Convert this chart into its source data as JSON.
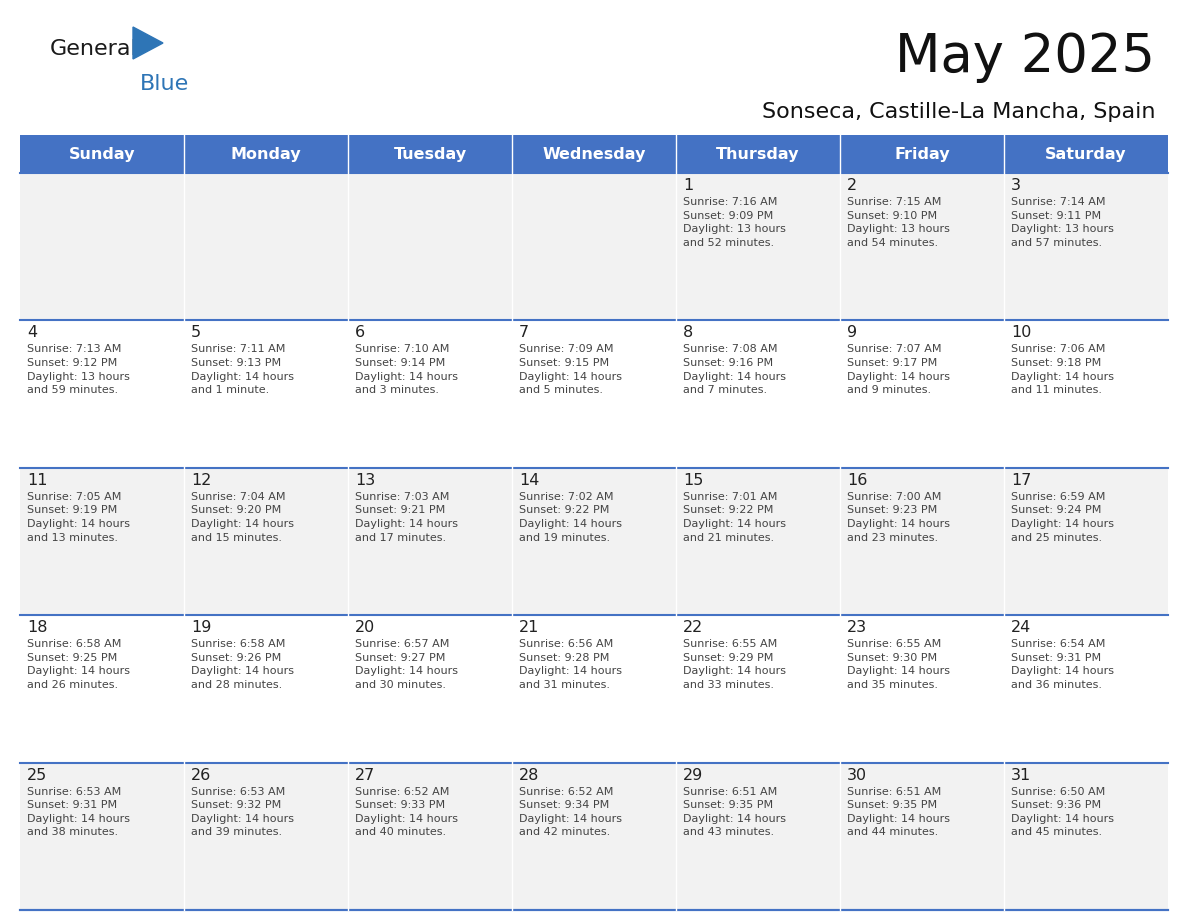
{
  "title": "May 2025",
  "subtitle": "Sonseca, Castille-La Mancha, Spain",
  "days_of_week": [
    "Sunday",
    "Monday",
    "Tuesday",
    "Wednesday",
    "Thursday",
    "Friday",
    "Saturday"
  ],
  "header_bg": "#4472C4",
  "header_text": "#FFFFFF",
  "cell_bg_odd": "#F2F2F2",
  "cell_bg_even": "#FFFFFF",
  "day_number_color": "#222222",
  "text_color": "#444444",
  "line_color": "#4472C4",
  "logo_general_color": "#1a1a1a",
  "logo_blue_color": "#2E75B6",
  "calendar_data": [
    [
      {
        "day": null,
        "info": null
      },
      {
        "day": null,
        "info": null
      },
      {
        "day": null,
        "info": null
      },
      {
        "day": null,
        "info": null
      },
      {
        "day": 1,
        "info": "Sunrise: 7:16 AM\nSunset: 9:09 PM\nDaylight: 13 hours\nand 52 minutes."
      },
      {
        "day": 2,
        "info": "Sunrise: 7:15 AM\nSunset: 9:10 PM\nDaylight: 13 hours\nand 54 minutes."
      },
      {
        "day": 3,
        "info": "Sunrise: 7:14 AM\nSunset: 9:11 PM\nDaylight: 13 hours\nand 57 minutes."
      }
    ],
    [
      {
        "day": 4,
        "info": "Sunrise: 7:13 AM\nSunset: 9:12 PM\nDaylight: 13 hours\nand 59 minutes."
      },
      {
        "day": 5,
        "info": "Sunrise: 7:11 AM\nSunset: 9:13 PM\nDaylight: 14 hours\nand 1 minute."
      },
      {
        "day": 6,
        "info": "Sunrise: 7:10 AM\nSunset: 9:14 PM\nDaylight: 14 hours\nand 3 minutes."
      },
      {
        "day": 7,
        "info": "Sunrise: 7:09 AM\nSunset: 9:15 PM\nDaylight: 14 hours\nand 5 minutes."
      },
      {
        "day": 8,
        "info": "Sunrise: 7:08 AM\nSunset: 9:16 PM\nDaylight: 14 hours\nand 7 minutes."
      },
      {
        "day": 9,
        "info": "Sunrise: 7:07 AM\nSunset: 9:17 PM\nDaylight: 14 hours\nand 9 minutes."
      },
      {
        "day": 10,
        "info": "Sunrise: 7:06 AM\nSunset: 9:18 PM\nDaylight: 14 hours\nand 11 minutes."
      }
    ],
    [
      {
        "day": 11,
        "info": "Sunrise: 7:05 AM\nSunset: 9:19 PM\nDaylight: 14 hours\nand 13 minutes."
      },
      {
        "day": 12,
        "info": "Sunrise: 7:04 AM\nSunset: 9:20 PM\nDaylight: 14 hours\nand 15 minutes."
      },
      {
        "day": 13,
        "info": "Sunrise: 7:03 AM\nSunset: 9:21 PM\nDaylight: 14 hours\nand 17 minutes."
      },
      {
        "day": 14,
        "info": "Sunrise: 7:02 AM\nSunset: 9:22 PM\nDaylight: 14 hours\nand 19 minutes."
      },
      {
        "day": 15,
        "info": "Sunrise: 7:01 AM\nSunset: 9:22 PM\nDaylight: 14 hours\nand 21 minutes."
      },
      {
        "day": 16,
        "info": "Sunrise: 7:00 AM\nSunset: 9:23 PM\nDaylight: 14 hours\nand 23 minutes."
      },
      {
        "day": 17,
        "info": "Sunrise: 6:59 AM\nSunset: 9:24 PM\nDaylight: 14 hours\nand 25 minutes."
      }
    ],
    [
      {
        "day": 18,
        "info": "Sunrise: 6:58 AM\nSunset: 9:25 PM\nDaylight: 14 hours\nand 26 minutes."
      },
      {
        "day": 19,
        "info": "Sunrise: 6:58 AM\nSunset: 9:26 PM\nDaylight: 14 hours\nand 28 minutes."
      },
      {
        "day": 20,
        "info": "Sunrise: 6:57 AM\nSunset: 9:27 PM\nDaylight: 14 hours\nand 30 minutes."
      },
      {
        "day": 21,
        "info": "Sunrise: 6:56 AM\nSunset: 9:28 PM\nDaylight: 14 hours\nand 31 minutes."
      },
      {
        "day": 22,
        "info": "Sunrise: 6:55 AM\nSunset: 9:29 PM\nDaylight: 14 hours\nand 33 minutes."
      },
      {
        "day": 23,
        "info": "Sunrise: 6:55 AM\nSunset: 9:30 PM\nDaylight: 14 hours\nand 35 minutes."
      },
      {
        "day": 24,
        "info": "Sunrise: 6:54 AM\nSunset: 9:31 PM\nDaylight: 14 hours\nand 36 minutes."
      }
    ],
    [
      {
        "day": 25,
        "info": "Sunrise: 6:53 AM\nSunset: 9:31 PM\nDaylight: 14 hours\nand 38 minutes."
      },
      {
        "day": 26,
        "info": "Sunrise: 6:53 AM\nSunset: 9:32 PM\nDaylight: 14 hours\nand 39 minutes."
      },
      {
        "day": 27,
        "info": "Sunrise: 6:52 AM\nSunset: 9:33 PM\nDaylight: 14 hours\nand 40 minutes."
      },
      {
        "day": 28,
        "info": "Sunrise: 6:52 AM\nSunset: 9:34 PM\nDaylight: 14 hours\nand 42 minutes."
      },
      {
        "day": 29,
        "info": "Sunrise: 6:51 AM\nSunset: 9:35 PM\nDaylight: 14 hours\nand 43 minutes."
      },
      {
        "day": 30,
        "info": "Sunrise: 6:51 AM\nSunset: 9:35 PM\nDaylight: 14 hours\nand 44 minutes."
      },
      {
        "day": 31,
        "info": "Sunrise: 6:50 AM\nSunset: 9:36 PM\nDaylight: 14 hours\nand 45 minutes."
      }
    ]
  ]
}
